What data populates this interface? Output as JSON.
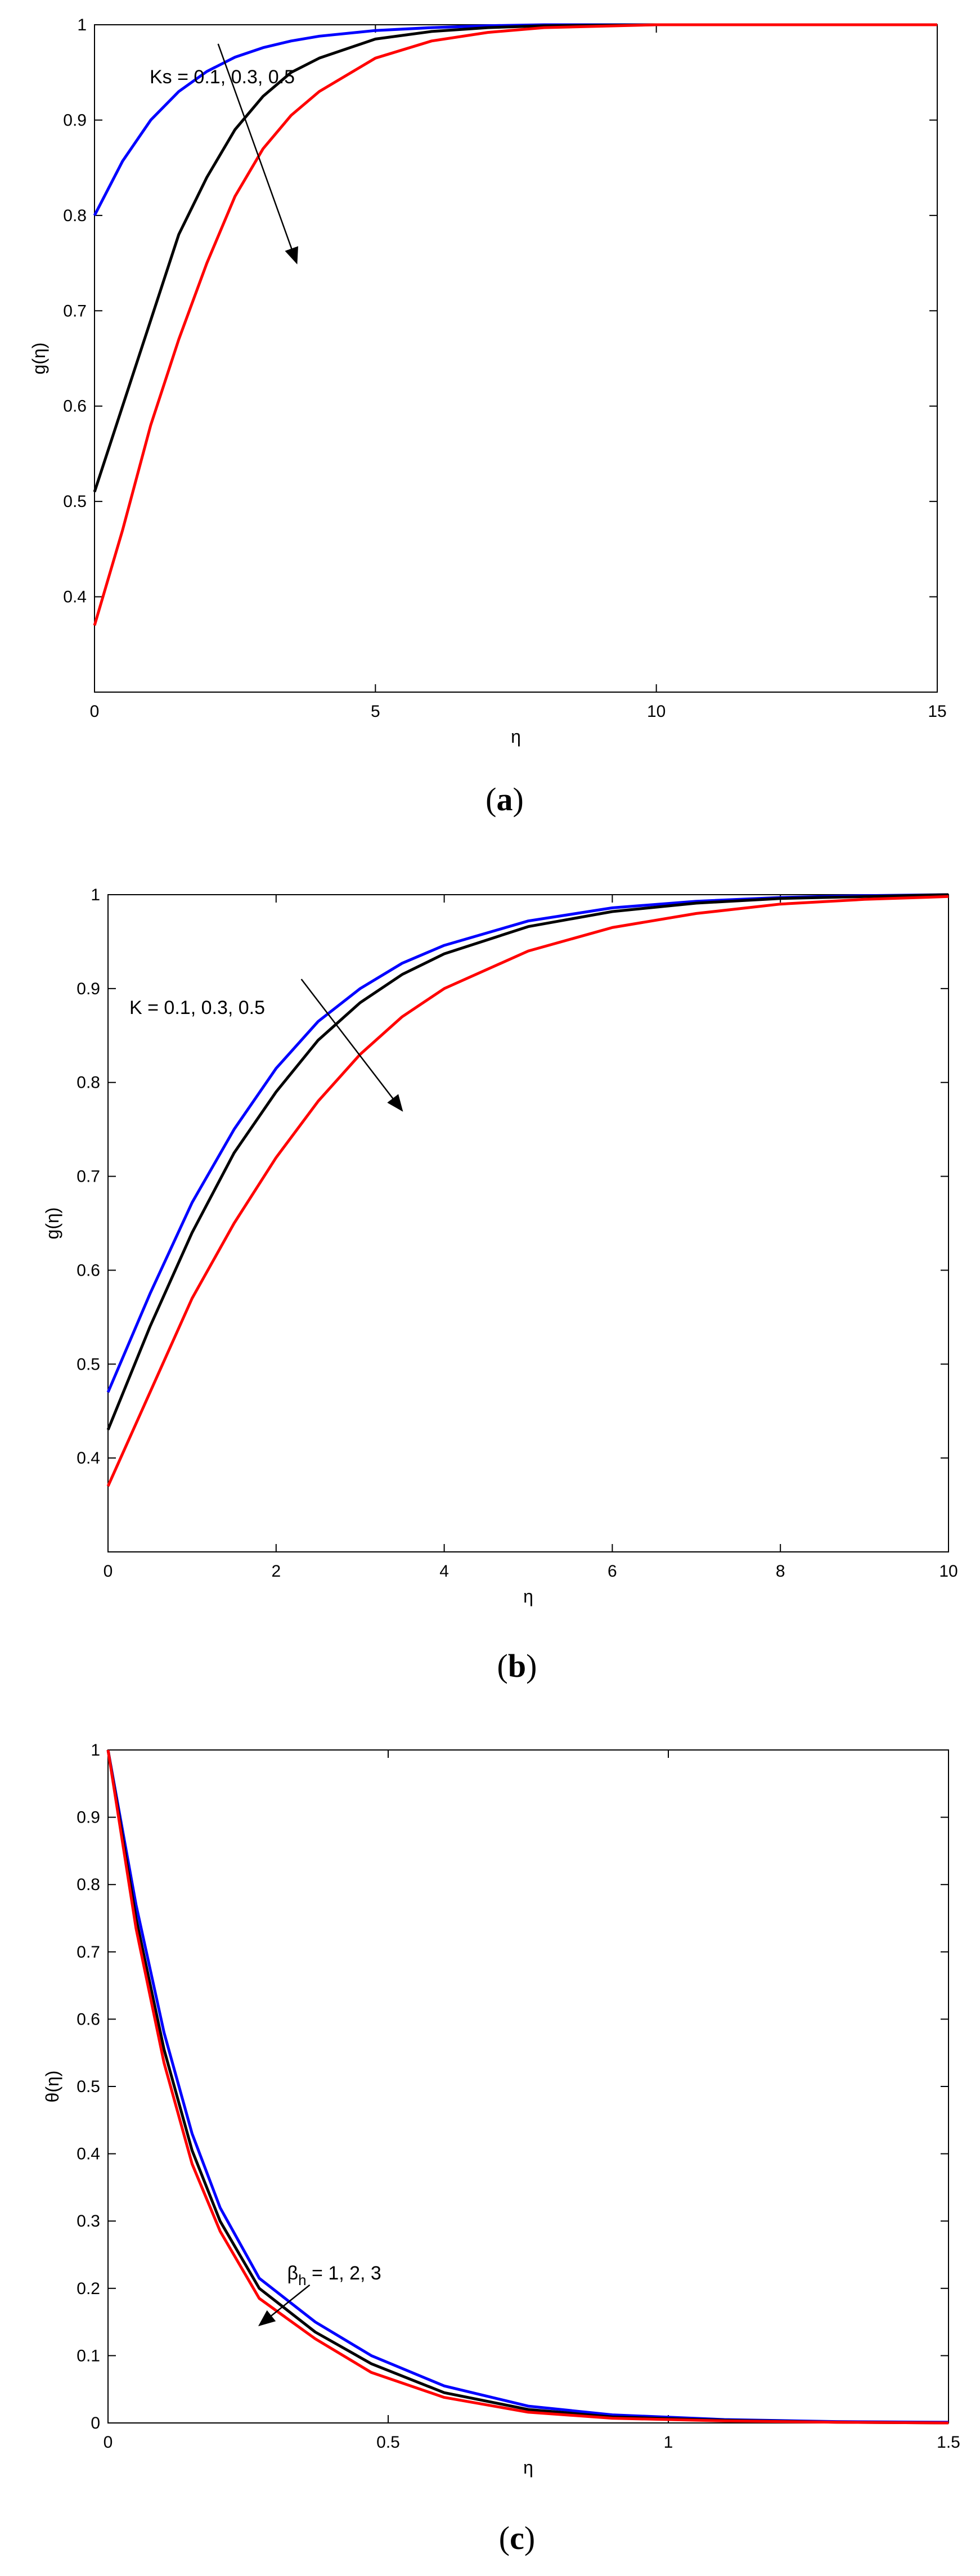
{
  "chart_data": [
    {
      "type": "line",
      "caption": {
        "open": "(",
        "letter": "a",
        "close": ")"
      },
      "xlabel": "η",
      "ylabel": "g(η)",
      "xlim": [
        0,
        15
      ],
      "ylim": [
        0.3,
        1
      ],
      "xticks": [
        0,
        5,
        10,
        15
      ],
      "yticks": [
        0.4,
        0.5,
        0.6,
        0.7,
        0.8,
        0.9,
        1
      ],
      "annotation": {
        "text": "Ks = 0.1, 0.3, 0.5",
        "arrow_from": [
          2.2,
          0.98
        ],
        "arrow_to": [
          3.6,
          0.75
        ]
      },
      "series": [
        {
          "color": "#0000ff",
          "x": [
            0,
            0.5,
            1,
            1.5,
            2,
            2.5,
            3,
            3.5,
            4,
            5,
            6,
            7,
            8,
            10,
            12,
            15
          ],
          "y": [
            0.8,
            0.857,
            0.9,
            0.93,
            0.951,
            0.966,
            0.976,
            0.983,
            0.988,
            0.994,
            0.997,
            0.999,
            1.0,
            1.0,
            1.0,
            1.0
          ]
        },
        {
          "color": "#000000",
          "x": [
            0,
            0.5,
            1,
            1.5,
            2,
            2.5,
            3,
            3.5,
            4,
            5,
            6,
            7,
            8,
            10,
            12,
            15
          ],
          "y": [
            0.51,
            0.6,
            0.69,
            0.78,
            0.84,
            0.89,
            0.925,
            0.95,
            0.965,
            0.985,
            0.993,
            0.997,
            0.999,
            1.0,
            1.0,
            1.0
          ]
        },
        {
          "color": "#ff0000",
          "x": [
            0,
            0.5,
            1,
            1.5,
            2,
            2.5,
            3,
            3.5,
            4,
            5,
            6,
            7,
            8,
            10,
            12,
            15
          ],
          "y": [
            0.37,
            0.47,
            0.58,
            0.67,
            0.75,
            0.82,
            0.87,
            0.905,
            0.93,
            0.965,
            0.983,
            0.992,
            0.997,
            1.0,
            1.0,
            1.0
          ]
        }
      ]
    },
    {
      "type": "line",
      "caption": {
        "open": "(",
        "letter": "b",
        "close": ")"
      },
      "xlabel": "η",
      "ylabel": "g(η)",
      "xlim": [
        0,
        10
      ],
      "ylim": [
        0.3,
        1
      ],
      "xticks": [
        0,
        2,
        4,
        6,
        8,
        10
      ],
      "yticks": [
        0.4,
        0.5,
        0.6,
        0.7,
        0.8,
        0.9,
        1
      ],
      "annotation": {
        "text": "K = 0.1, 0.3, 0.5",
        "arrow_from": [
          2.3,
          0.91
        ],
        "arrow_to": [
          3.5,
          0.77
        ]
      },
      "series": [
        {
          "color": "#0000ff",
          "x": [
            0,
            0.5,
            1,
            1.5,
            2,
            2.5,
            3,
            3.5,
            4,
            5,
            6,
            7,
            8,
            9,
            10
          ],
          "y": [
            0.47,
            0.575,
            0.672,
            0.75,
            0.815,
            0.865,
            0.9,
            0.927,
            0.946,
            0.972,
            0.986,
            0.993,
            0.997,
            0.999,
            1.0
          ]
        },
        {
          "color": "#000000",
          "x": [
            0,
            0.5,
            1,
            1.5,
            2,
            2.5,
            3,
            3.5,
            4,
            5,
            6,
            7,
            8,
            9,
            10
          ],
          "y": [
            0.43,
            0.54,
            0.64,
            0.725,
            0.79,
            0.845,
            0.885,
            0.915,
            0.937,
            0.966,
            0.982,
            0.991,
            0.996,
            0.998,
            1.0
          ]
        },
        {
          "color": "#ff0000",
          "x": [
            0,
            0.5,
            1,
            1.5,
            2,
            2.5,
            3,
            3.5,
            4,
            5,
            6,
            7,
            8,
            9,
            10
          ],
          "y": [
            0.37,
            0.47,
            0.57,
            0.65,
            0.72,
            0.78,
            0.83,
            0.87,
            0.9,
            0.94,
            0.965,
            0.98,
            0.99,
            0.995,
            0.998
          ]
        }
      ]
    },
    {
      "type": "line",
      "caption": {
        "open": "(",
        "letter": "c",
        "close": ")"
      },
      "xlabel": "η",
      "ylabel": "θ(η)",
      "xlim": [
        0,
        1.5
      ],
      "ylim": [
        0,
        1
      ],
      "xticks": [
        0,
        0.5,
        1,
        1.5
      ],
      "yticks": [
        0,
        0.1,
        0.2,
        0.3,
        0.4,
        0.5,
        0.6,
        0.7,
        0.8,
        0.9,
        1
      ],
      "annotation": {
        "text": "βh = 1, 2, 3",
        "base": "β",
        "subscript": "h",
        "rest": " = 1, 2, 3",
        "arrow_from": [
          0.36,
          0.205
        ],
        "arrow_to": [
          0.27,
          0.145
        ]
      },
      "series": [
        {
          "color": "#0000ff",
          "x": [
            0,
            0.05,
            0.1,
            0.15,
            0.2,
            0.27,
            0.37,
            0.47,
            0.6,
            0.75,
            0.9,
            1.1,
            1.3,
            1.5
          ],
          "y": [
            1.0,
            0.77,
            0.58,
            0.43,
            0.32,
            0.215,
            0.15,
            0.1,
            0.055,
            0.025,
            0.012,
            0.005,
            0.002,
            0.001
          ]
        },
        {
          "color": "#000000",
          "x": [
            0,
            0.05,
            0.1,
            0.15,
            0.2,
            0.27,
            0.37,
            0.47,
            0.6,
            0.75,
            0.9,
            1.1,
            1.3,
            1.5
          ],
          "y": [
            1.0,
            0.75,
            0.555,
            0.405,
            0.3,
            0.2,
            0.135,
            0.088,
            0.045,
            0.02,
            0.009,
            0.004,
            0.001,
            0.0
          ]
        },
        {
          "color": "#ff0000",
          "x": [
            0,
            0.05,
            0.1,
            0.15,
            0.2,
            0.27,
            0.37,
            0.47,
            0.6,
            0.75,
            0.9,
            1.1,
            1.3,
            1.5
          ],
          "y": [
            1.0,
            0.735,
            0.535,
            0.385,
            0.285,
            0.185,
            0.125,
            0.075,
            0.038,
            0.016,
            0.007,
            0.003,
            0.001,
            0.0
          ]
        }
      ]
    }
  ]
}
